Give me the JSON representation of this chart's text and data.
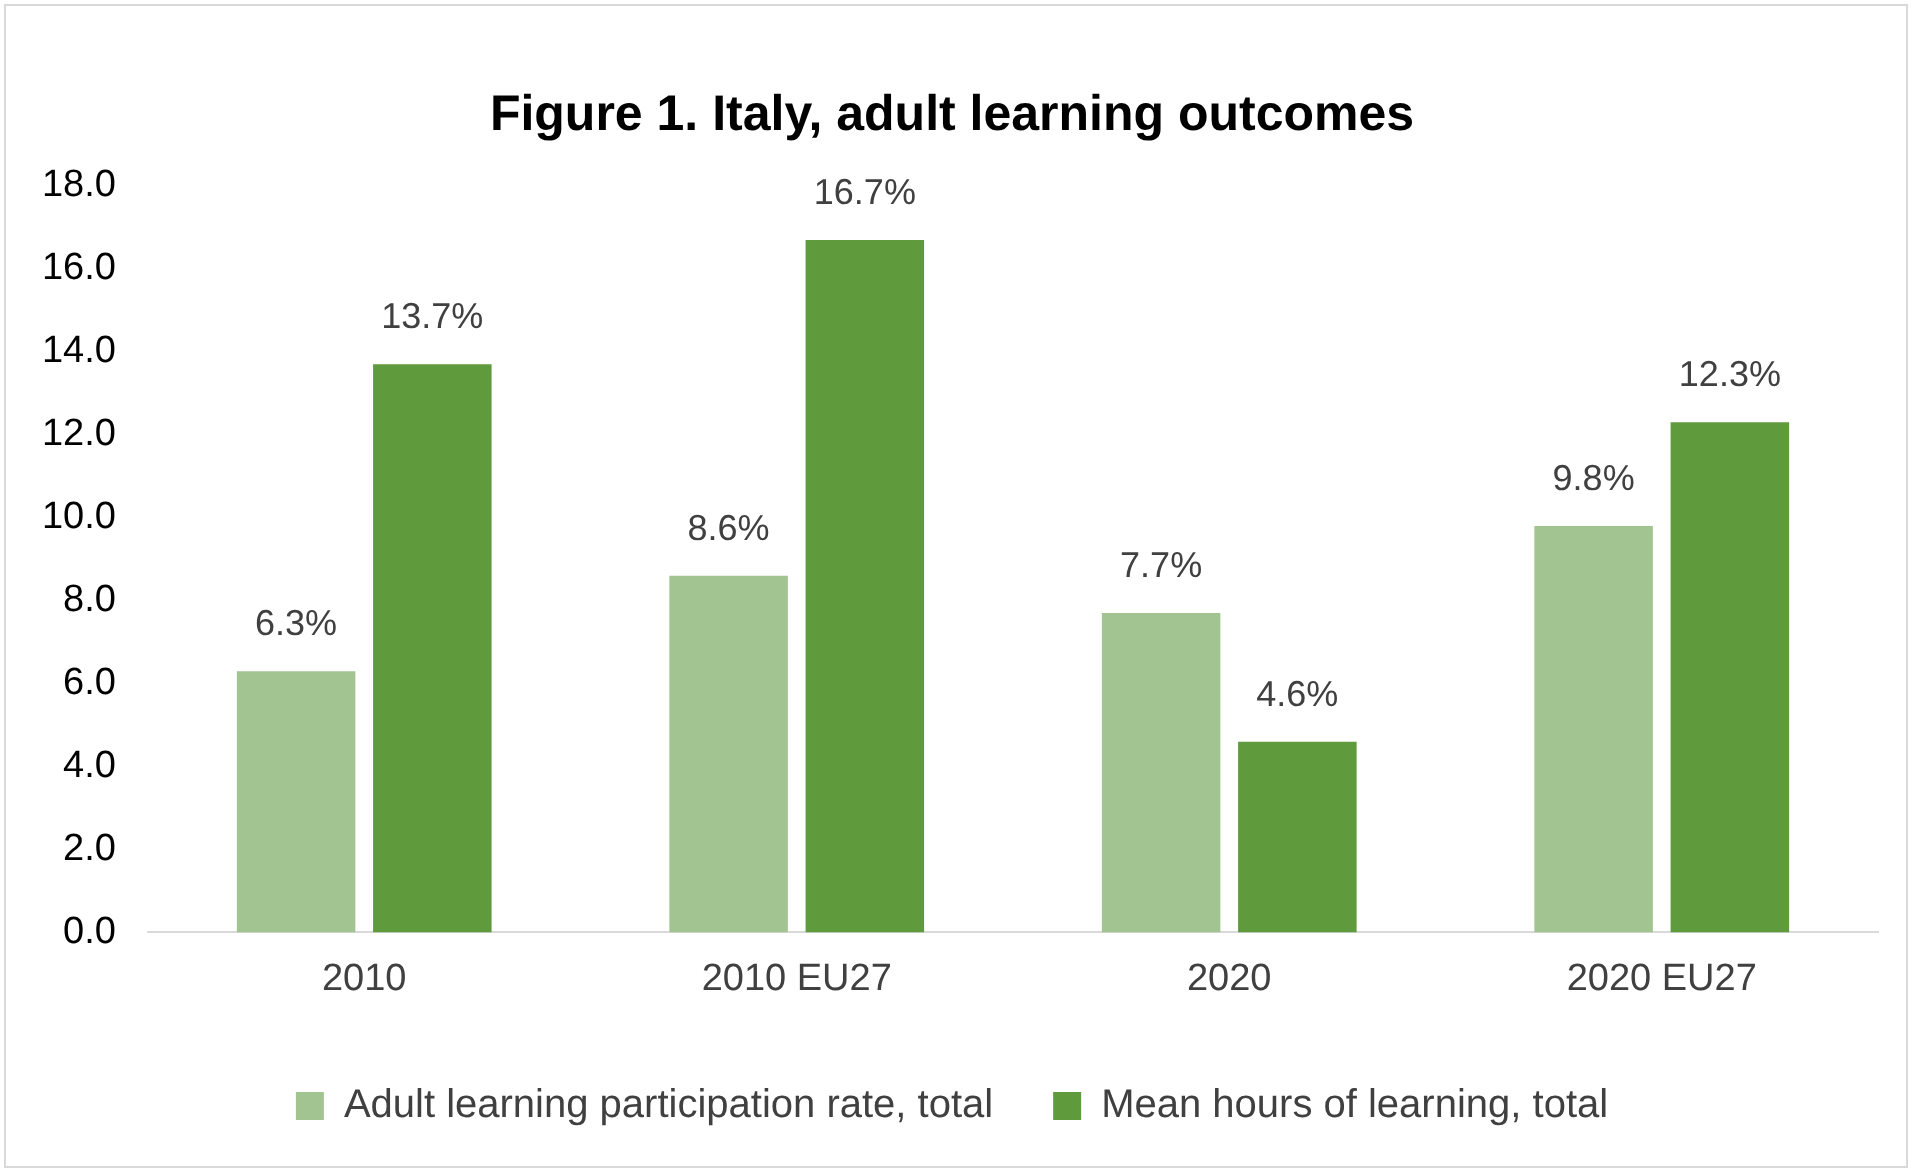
{
  "chart_data": {
    "type": "bar",
    "title": "Figure 1. Italy, adult learning outcomes",
    "categories": [
      "2010",
      "2010 EU27",
      "2020",
      "2020 EU27"
    ],
    "series": [
      {
        "name": "Adult learning participation rate, total",
        "color": "#a2c490",
        "values": [
          6.3,
          8.6,
          7.7,
          9.8
        ],
        "value_labels": [
          "6.3%",
          "8.6%",
          "7.7%",
          "9.8%"
        ]
      },
      {
        "name": "Mean hours of learning, total",
        "color": "#5f9a3d",
        "values": [
          13.7,
          16.7,
          4.6,
          12.3
        ],
        "value_labels": [
          "13.7%",
          "16.7%",
          "4.6%",
          "12.3%"
        ]
      }
    ],
    "ylim": [
      0,
      18
    ],
    "yticks": [
      {
        "value": 0,
        "label": "0.0"
      },
      {
        "value": 2,
        "label": "2.0"
      },
      {
        "value": 4,
        "label": "4.0"
      },
      {
        "value": 6,
        "label": "6.0"
      },
      {
        "value": 8,
        "label": "8.0"
      },
      {
        "value": 10,
        "label": "10.0"
      },
      {
        "value": 12,
        "label": "12.0"
      },
      {
        "value": 14,
        "label": "14.0"
      },
      {
        "value": 16,
        "label": "16.0"
      },
      {
        "value": 18,
        "label": "18.0"
      }
    ],
    "grid": false,
    "legend": "bottom"
  }
}
